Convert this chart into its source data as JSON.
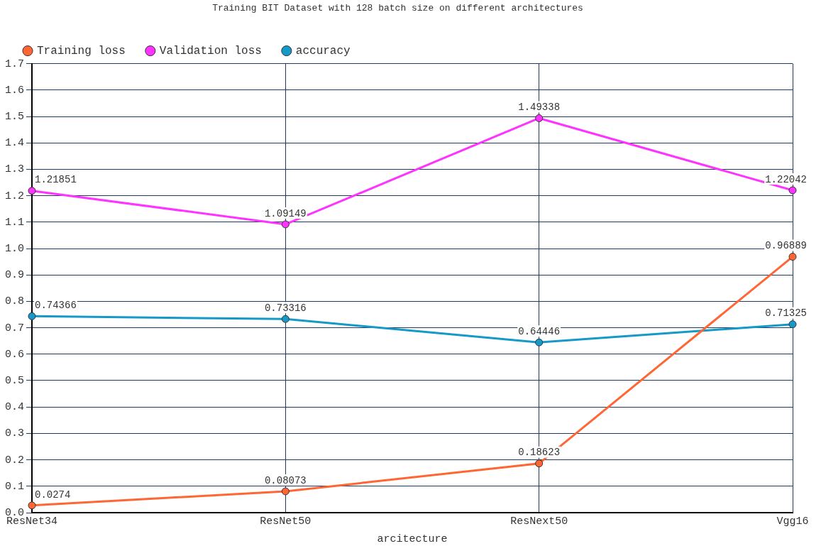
{
  "chart_data": {
    "type": "line",
    "title": "Training BIT Dataset with 128 batch size on different architectures",
    "xlabel": "arcitecture",
    "categories": [
      "ResNet34",
      "ResNet50",
      "ResNext50",
      "Vgg16"
    ],
    "series": [
      {
        "name": "Training loss",
        "color": "#ff6633",
        "values": [
          0.0274,
          0.08073,
          0.18623,
          0.96889
        ]
      },
      {
        "name": "Validation loss",
        "color": "#ff33ff",
        "values": [
          1.21851,
          1.09149,
          1.49338,
          1.22042
        ]
      },
      {
        "name": "accuracy",
        "color": "#1499c8",
        "values": [
          0.74366,
          0.73316,
          0.64446,
          0.71325
        ]
      }
    ],
    "ylim": [
      0,
      1.7
    ],
    "yticks": [
      {
        "value": 0,
        "label": "0.0"
      },
      0.1,
      0.2,
      0.3,
      0.4,
      0.5,
      0.6,
      0.7,
      0.8,
      0.9,
      {
        "value": 1,
        "label": "1.0"
      },
      1.1,
      1.2,
      1.3,
      1.4,
      1.5,
      1.6,
      1.7
    ],
    "grid": true,
    "legend": "top left",
    "marker": "circle",
    "line_style": "solid",
    "data_labels": true
  }
}
